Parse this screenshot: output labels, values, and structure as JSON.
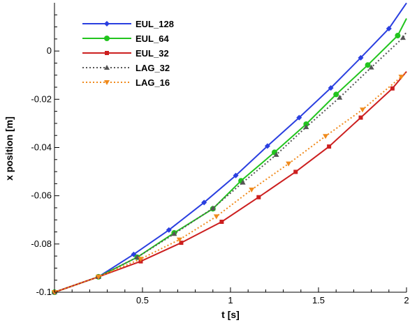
{
  "chart_data": {
    "type": "line",
    "xlabel": "t [s]",
    "ylabel": "x position [m]",
    "xlim": [
      0,
      2
    ],
    "ylim": [
      -0.1,
      0.02
    ],
    "xticks": [
      0.5,
      1,
      1.5,
      2
    ],
    "xtick_labels": [
      "0.5",
      "1",
      "1.5",
      "2"
    ],
    "yticks": [
      -0.1,
      -0.08,
      -0.06,
      -0.04,
      -0.02,
      0
    ],
    "ytick_labels": [
      "-0.1",
      "-0.08",
      "-0.06",
      "-0.04",
      "-0.02",
      "0"
    ],
    "grid": false,
    "legend_position": "top-left",
    "series": [
      {
        "name": "EUL_128",
        "color": "#2a3fe0",
        "line_style": "solid",
        "marker": "diamond",
        "x": [
          0.0,
          0.25,
          0.45,
          0.65,
          0.85,
          1.03,
          1.21,
          1.39,
          1.57,
          1.74,
          1.9,
          2.0
        ],
        "y": [
          -0.1,
          -0.0936,
          -0.0843,
          -0.0742,
          -0.0628,
          -0.0516,
          -0.0394,
          -0.0276,
          -0.0153,
          -0.0028,
          0.0093,
          0.0199
        ]
      },
      {
        "name": "EUL_64",
        "color": "#22c41e",
        "line_style": "solid",
        "marker": "circle",
        "x": [
          0.0,
          0.25,
          0.47,
          0.68,
          0.9,
          1.06,
          1.25,
          1.43,
          1.6,
          1.78,
          1.95,
          2.0
        ],
        "y": [
          -0.1,
          -0.0936,
          -0.0855,
          -0.0754,
          -0.0654,
          -0.0538,
          -0.042,
          -0.0303,
          -0.018,
          -0.0058,
          0.0064,
          0.0135
        ]
      },
      {
        "name": "EUL_32",
        "color": "#cc1f1f",
        "line_style": "solid",
        "marker": "square",
        "x": [
          0.0,
          0.25,
          0.49,
          0.72,
          0.95,
          1.16,
          1.37,
          1.56,
          1.74,
          1.92,
          2.0
        ],
        "y": [
          -0.1,
          -0.0936,
          -0.0872,
          -0.0795,
          -0.0708,
          -0.0606,
          -0.0501,
          -0.0396,
          -0.0276,
          -0.0155,
          -0.0085
        ]
      },
      {
        "name": "LAG_32",
        "color": "#555555",
        "line_style": "dotted",
        "marker": "triangle-up",
        "x": [
          0.0,
          0.25,
          0.47,
          0.68,
          0.9,
          1.07,
          1.26,
          1.43,
          1.62,
          1.8,
          1.98,
          2.0
        ],
        "y": [
          -0.1,
          -0.0936,
          -0.0855,
          -0.0758,
          -0.0652,
          -0.0545,
          -0.043,
          -0.0315,
          -0.0193,
          -0.0068,
          0.0055,
          0.008
        ]
      },
      {
        "name": "LAG_16",
        "color": "#f08a1c",
        "line_style": "dotted",
        "marker": "triangle-down",
        "x": [
          0.0,
          0.25,
          0.49,
          0.71,
          0.92,
          1.12,
          1.33,
          1.54,
          1.75,
          1.97,
          2.0
        ],
        "y": [
          -0.1,
          -0.0936,
          -0.0862,
          -0.0782,
          -0.0686,
          -0.0575,
          -0.0467,
          -0.0353,
          -0.0243,
          -0.0107,
          -0.0085
        ]
      }
    ]
  }
}
